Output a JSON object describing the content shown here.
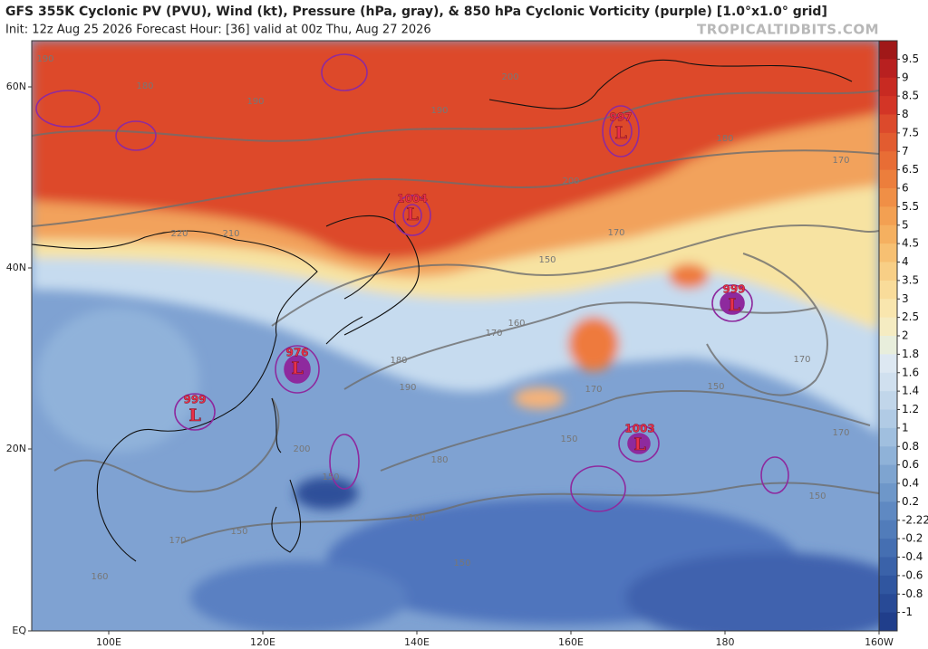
{
  "header": {
    "title": "GFS 355K Cyclonic PV (PVU), Wind (kt), Pressure (hPa, gray), & 850 hPa Cyclonic Vorticity (purple) [1.0°x1.0° grid]",
    "subtitle": "Init: 12z Aug 25 2026   Forecast Hour: [36]   valid at 00z Thu, Aug 27 2026",
    "credit": "TROPICALTIDBITS.COM"
  },
  "latitude_labels": [
    "60N",
    "40N",
    "20N",
    "EQ"
  ],
  "longitude_labels": [
    "100E",
    "120E",
    "140E",
    "160E",
    "180",
    "160W"
  ],
  "colorbar_labels": [
    "9.5",
    "9",
    "8.5",
    "8",
    "7.5",
    "7",
    "6.5",
    "6",
    "5.5",
    "5",
    "4.5",
    "4",
    "3.5",
    "3",
    "2.5",
    "2",
    "1.8",
    "1.6",
    "1.4",
    "1.2",
    "1",
    "0.8",
    "0.6",
    "0.4",
    "0.2",
    "-2.22",
    "-0.2",
    "-0.4",
    "-0.6",
    "-0.8",
    "-1"
  ],
  "lows": [
    {
      "pressure": "997",
      "symbol": "L"
    },
    {
      "pressure": "1004",
      "symbol": "L"
    },
    {
      "pressure": "999",
      "symbol": "L"
    },
    {
      "pressure": "976",
      "symbol": "L"
    },
    {
      "pressure": "999",
      "symbol": "L"
    },
    {
      "pressure": "1003",
      "symbol": "L"
    }
  ],
  "contour_labels": [
    "190",
    "180",
    "190",
    "190",
    "200",
    "180",
    "170",
    "200",
    "210",
    "220",
    "150",
    "170",
    "160",
    "170",
    "180",
    "190",
    "170",
    "150",
    "170",
    "170",
    "150",
    "180",
    "200",
    "150",
    "150",
    "160",
    "150",
    "170",
    "160",
    "150"
  ]
}
